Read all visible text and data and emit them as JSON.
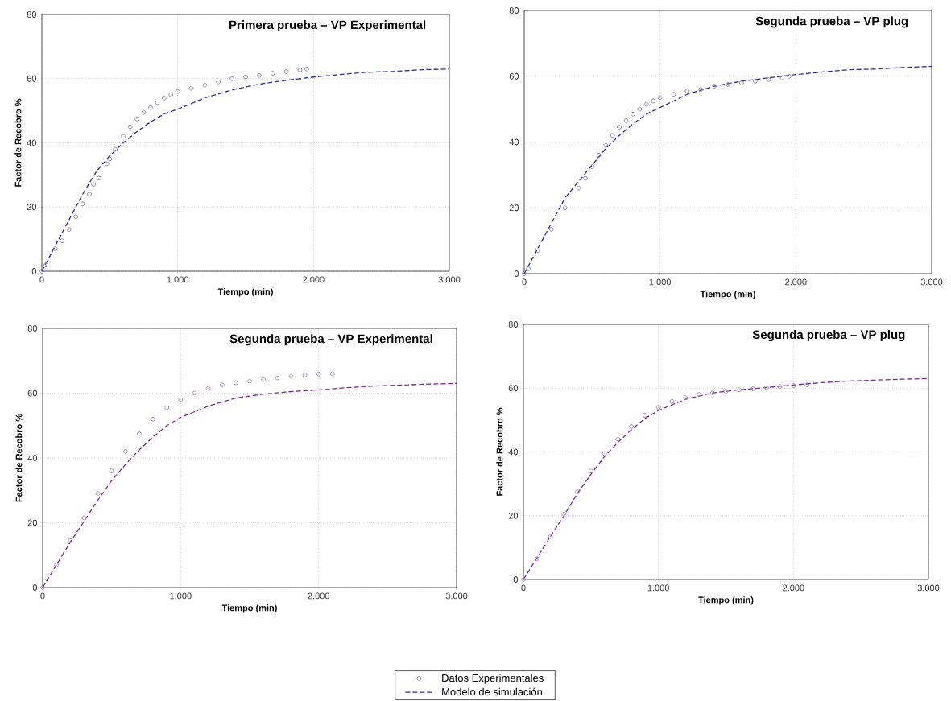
{
  "chart_data": [
    {
      "type": "line",
      "title": "Primera prueba – VP Experimental",
      "xlabel": "Tiempo (min)",
      "ylabel": "Factor de Recobro %",
      "xlim": [
        0,
        3000
      ],
      "ylim": [
        0,
        80
      ],
      "xticks": [
        0,
        {
          "value": 1000,
          "label": "1.000"
        },
        {
          "value": 2000,
          "label": "2.000"
        },
        {
          "value": 3000,
          "label": "3.000"
        }
      ],
      "yticks": [
        0,
        20,
        40,
        60,
        80
      ],
      "grid": true,
      "legend": "bottom",
      "series": [
        {
          "name": "Datos  Experimentales",
          "type": "scatter",
          "marker": "circle",
          "color": "#8e76aa",
          "x": [
            0,
            30,
            100,
            150,
            200,
            250,
            300,
            350,
            380,
            420,
            480,
            500,
            540,
            600,
            650,
            700,
            750,
            800,
            850,
            900,
            950,
            1000,
            1100,
            1200,
            1300,
            1400,
            1500,
            1600,
            1700,
            1800,
            1900,
            1950
          ],
          "values": [
            0,
            2,
            7,
            9.5,
            13,
            17,
            21,
            24,
            27,
            29,
            33.5,
            35,
            38,
            42,
            45,
            47.5,
            49.5,
            51,
            52.5,
            54,
            55,
            56,
            57,
            58,
            59,
            60,
            60.5,
            61,
            61.7,
            62.2,
            62.7,
            63
          ]
        },
        {
          "name": "Modelo de simulación",
          "type": "line",
          "line_style": "dashed",
          "color": "#2e3192",
          "x": [
            0,
            100,
            200,
            300,
            400,
            500,
            600,
            700,
            800,
            900,
            1000,
            1200,
            1400,
            1600,
            1800,
            2000,
            2200,
            2400,
            2600,
            2800,
            3000
          ],
          "values": [
            0,
            8,
            16,
            24,
            31,
            36,
            40,
            43.5,
            46.5,
            49,
            50.5,
            54,
            56.5,
            58.3,
            59.5,
            60.5,
            61.3,
            62,
            62.3,
            62.8,
            63
          ]
        }
      ]
    },
    {
      "type": "line",
      "title": "Segunda prueba –  VP plug",
      "xlabel": "Tiempo (min)",
      "xlim": [
        0,
        3000
      ],
      "ylim": [
        0,
        80
      ],
      "xticks": [
        0,
        {
          "value": 1000,
          "label": "1.000"
        },
        {
          "value": 2000,
          "label": "2.000"
        },
        {
          "value": 3000,
          "label": "3.000"
        }
      ],
      "yticks": [
        0,
        20,
        40,
        60,
        80
      ],
      "grid": true,
      "series": [
        {
          "type": "scatter",
          "marker": "circle",
          "color": "#8e76aa",
          "x": [
            0,
            30,
            100,
            200,
            300,
            400,
            450,
            500,
            550,
            600,
            650,
            700,
            750,
            800,
            850,
            900,
            950,
            1000,
            1100,
            1200,
            1300,
            1400,
            1500,
            1600,
            1700,
            1800,
            1900,
            1950
          ],
          "values": [
            0,
            1.5,
            7,
            13.5,
            20,
            26,
            29,
            32.5,
            36,
            39,
            42,
            44.5,
            46.5,
            48.5,
            50,
            51.5,
            52.5,
            53.5,
            54.5,
            55.5,
            56,
            57,
            57.5,
            58,
            58.5,
            59,
            59.5,
            60
          ]
        },
        {
          "type": "line",
          "line_style": "dashed",
          "color": "#2e3192",
          "x": [
            0,
            300,
            500,
            600,
            700,
            800,
            900,
            1000,
            1200,
            1400,
            1600,
            1800,
            2000,
            2200,
            2400,
            2600,
            2800,
            3000
          ],
          "values": [
            0,
            23,
            33,
            38,
            42,
            45.5,
            48.5,
            50.5,
            54.5,
            57,
            58.5,
            59.5,
            60.5,
            61.3,
            62,
            62.2,
            62.7,
            63
          ]
        }
      ]
    },
    {
      "type": "line",
      "title": "Segunda prueba – VP Experimental",
      "xlabel": "Tiempo (min)",
      "ylabel": "Factor de Recobro %",
      "xlim": [
        0,
        3000
      ],
      "ylim": [
        0,
        80
      ],
      "xticks": [
        0,
        {
          "value": 1000,
          "label": "1.000"
        },
        {
          "value": 2000,
          "label": "2.000"
        },
        {
          "value": 3000,
          "label": "3.000"
        }
      ],
      "yticks": [
        0,
        20,
        40,
        60,
        80
      ],
      "grid": true,
      "series": [
        {
          "type": "scatter",
          "marker": "circle",
          "color": "#9a80b8",
          "x": [
            0,
            100,
            200,
            300,
            400,
            500,
            600,
            700,
            800,
            900,
            1000,
            1100,
            1200,
            1300,
            1400,
            1500,
            1600,
            1700,
            1800,
            1900,
            2000,
            2100
          ],
          "values": [
            0,
            7,
            14.5,
            21.5,
            29,
            36,
            42,
            47.5,
            52,
            55.5,
            58,
            60,
            61.5,
            62.5,
            63.2,
            63.7,
            64.2,
            64.7,
            65.2,
            65.6,
            65.9,
            66
          ]
        },
        {
          "type": "line",
          "line_style": "dashed",
          "color": "#7b2d8e",
          "x": [
            0,
            200,
            300,
            400,
            500,
            600,
            700,
            800,
            900,
            1000,
            1200,
            1400,
            1600,
            1800,
            2000,
            2200,
            2400,
            2600,
            2800,
            3000
          ],
          "values": [
            0,
            14,
            20.5,
            27,
            33,
            38,
            42.5,
            46.5,
            50,
            52.5,
            56,
            58.5,
            59.7,
            60.5,
            61,
            61.7,
            62.2,
            62.5,
            62.8,
            63
          ]
        }
      ]
    },
    {
      "type": "line",
      "title": "Segunda prueba –  VP plug",
      "xlabel": "Tiempo (min)",
      "ylabel": "Factor de Recobro %",
      "xlim": [
        0,
        3000
      ],
      "ylim": [
        0,
        80
      ],
      "xticks": [
        0,
        {
          "value": 1000,
          "label": "1.000"
        },
        {
          "value": 2000,
          "label": "2.000"
        },
        {
          "value": 3000,
          "label": "3.000"
        }
      ],
      "yticks": [
        0,
        20,
        40,
        60,
        80
      ],
      "grid": true,
      "series": [
        {
          "type": "scatter",
          "marker": "circle",
          "color": "#9a80b8",
          "x": [
            0,
            100,
            200,
            300,
            400,
            500,
            600,
            700,
            800,
            900,
            1000,
            1100,
            1200,
            1300,
            1400,
            1500,
            1600,
            1700,
            1800,
            1900,
            2000,
            2100
          ],
          "values": [
            0,
            6.5,
            13.5,
            20.5,
            27.5,
            34,
            39.5,
            44,
            48,
            51.5,
            54,
            55.8,
            57,
            58,
            58.5,
            59,
            59.5,
            59.8,
            60.2,
            60.5,
            60.8,
            61
          ]
        },
        {
          "type": "line",
          "line_style": "dashed",
          "color": "#7b2d8e",
          "x": [
            0,
            200,
            300,
            400,
            500,
            600,
            700,
            800,
            900,
            1000,
            1200,
            1400,
            1600,
            1800,
            2000,
            2200,
            2400,
            2600,
            2800,
            3000
          ],
          "values": [
            0,
            13.5,
            20,
            27,
            33,
            38.5,
            43,
            47,
            50.5,
            53,
            56.5,
            58.5,
            59.5,
            60.2,
            61,
            61.7,
            62.2,
            62.5,
            62.8,
            63
          ]
        }
      ]
    }
  ]
}
